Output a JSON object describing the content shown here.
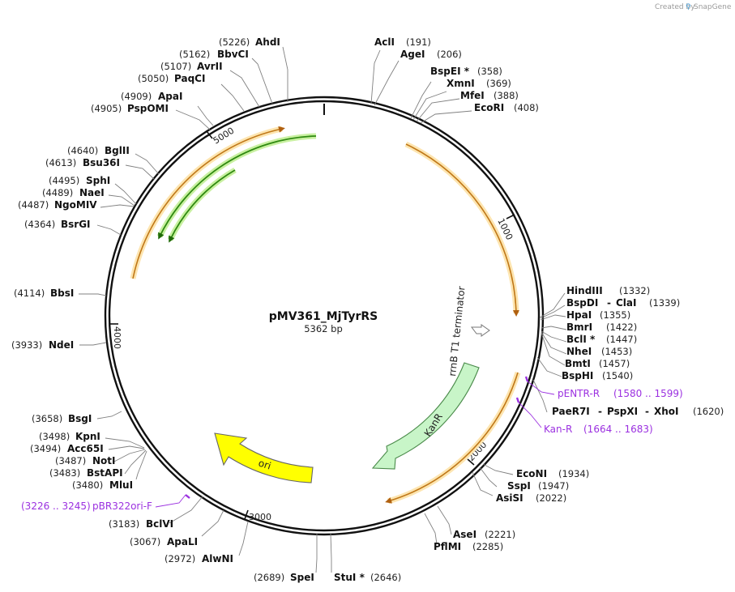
{
  "credit": {
    "created_by": "Created by",
    "brand": "SnapGene"
  },
  "plasmid": {
    "name": "pMV361_MjTyrRS",
    "size_label": "5362 bp"
  },
  "ticks": [
    {
      "id": "t1000",
      "label": "1000"
    },
    {
      "id": "t2000",
      "label": "2000"
    },
    {
      "id": "t3000",
      "label": "3000"
    },
    {
      "id": "t4000",
      "label": "4000"
    },
    {
      "id": "t5000",
      "label": "5000"
    }
  ],
  "sites": [
    {
      "id": "ahdi",
      "name": "AhdI",
      "pos": "(5226)"
    },
    {
      "id": "bbvci",
      "name": "BbvCI",
      "pos": "(5162)"
    },
    {
      "id": "avrii",
      "name": "AvrII",
      "pos": "(5107)"
    },
    {
      "id": "paqci",
      "name": "PaqCI",
      "pos": "(5050)"
    },
    {
      "id": "apai",
      "name": "ApaI",
      "pos": "(4909)"
    },
    {
      "id": "psppomi",
      "name": "PspOMI",
      "pos": "(4905)"
    },
    {
      "id": "bglii",
      "name": "BglII",
      "pos": "(4640)"
    },
    {
      "id": "bsu36i",
      "name": "Bsu36I",
      "pos": "(4613)"
    },
    {
      "id": "sphi",
      "name": "SphI",
      "pos": "(4495)"
    },
    {
      "id": "naei",
      "name": "NaeI",
      "pos": "(4489)"
    },
    {
      "id": "ngomiv",
      "name": "NgoMIV",
      "pos": "(4487)"
    },
    {
      "id": "bsrgi",
      "name": "BsrGI",
      "pos": "(4364)"
    },
    {
      "id": "bbsi",
      "name": "BbsI",
      "pos": "(4114)"
    },
    {
      "id": "ndei",
      "name": "NdeI",
      "pos": "(3933)"
    },
    {
      "id": "bsgi",
      "name": "BsgI",
      "pos": "(3658)"
    },
    {
      "id": "kpni",
      "name": "KpnI",
      "pos": "(3498)"
    },
    {
      "id": "acc65i",
      "name": "Acc65I",
      "pos": "(3494)"
    },
    {
      "id": "noti",
      "name": "NotI",
      "pos": "(3487)"
    },
    {
      "id": "bstapi",
      "name": "BstAPI",
      "pos": "(3483)"
    },
    {
      "id": "mlui",
      "name": "MluI",
      "pos": "(3480)"
    },
    {
      "id": "bclvi",
      "name": "BclVI",
      "pos": "(3183)"
    },
    {
      "id": "apali",
      "name": "ApaLI",
      "pos": "(3067)"
    },
    {
      "id": "alwni",
      "name": "AlwNI",
      "pos": "(2972)"
    },
    {
      "id": "spei",
      "name": "SpeI",
      "pos": "(2689)"
    },
    {
      "id": "stui",
      "name": "StuI *",
      "pos": "(2646)"
    },
    {
      "id": "acli",
      "name": "AclI",
      "pos": "(191)"
    },
    {
      "id": "agei",
      "name": "AgeI",
      "pos": "(206)"
    },
    {
      "id": "bspei",
      "name": "BspEI *",
      "pos": "(358)"
    },
    {
      "id": "xmni",
      "name": "XmnI",
      "pos": "(369)"
    },
    {
      "id": "mfei",
      "name": "MfeI",
      "pos": "(388)"
    },
    {
      "id": "ecori",
      "name": "EcoRI",
      "pos": "(408)"
    },
    {
      "id": "hindiii",
      "name": "HindIII",
      "pos": "(1332)"
    },
    {
      "id": "bspdi",
      "name": "BspDI",
      "sep": "-",
      "name2": "ClaI",
      "pos": "(1339)"
    },
    {
      "id": "hpai",
      "name": "HpaI",
      "pos": "(1355)"
    },
    {
      "id": "bmri",
      "name": "BmrI",
      "pos": "(1422)"
    },
    {
      "id": "bcli",
      "name": "BclI *",
      "pos": "(1447)"
    },
    {
      "id": "nhei",
      "name": "NheI",
      "pos": "(1453)"
    },
    {
      "id": "bmti",
      "name": "BmtI",
      "pos": "(1457)"
    },
    {
      "id": "bsphi",
      "name": "BspHI",
      "pos": "(1540)"
    },
    {
      "id": "paer7i",
      "name": "PaeR7I",
      "sep": "-",
      "name2": "PspXI",
      "sep2": "-",
      "name3": "XhoI",
      "pos": "(1620)"
    },
    {
      "id": "econi",
      "name": "EcoNI",
      "pos": "(1934)"
    },
    {
      "id": "sspi",
      "name": "SspI",
      "pos": "(1947)"
    },
    {
      "id": "asisi",
      "name": "AsiSI",
      "pos": "(2022)"
    },
    {
      "id": "asei",
      "name": "AseI",
      "pos": "(2221)"
    },
    {
      "id": "pflmi",
      "name": "PflMI",
      "pos": "(2285)"
    }
  ],
  "primers": [
    {
      "id": "pentr",
      "name": "pENTR-R",
      "range": "(1580 .. 1599)"
    },
    {
      "id": "kanr",
      "name": "Kan-R",
      "range": "(1664 .. 1683)"
    },
    {
      "id": "pbr322",
      "name": "pBR322ori-F",
      "range": "(3226 .. 3245)"
    }
  ],
  "features": [
    {
      "id": "kanr-feat",
      "label": "KanR",
      "color": "#c8f5c8"
    },
    {
      "id": "ori-feat",
      "label": "ori",
      "color": "#ffff00"
    },
    {
      "id": "rrnb-feat",
      "label": "rrnB T1 terminator",
      "color": "#ffffff"
    }
  ],
  "colors": {
    "orf": "#e8a020",
    "orf_glow": "#fde5b0",
    "green_orf": "#2f8a10",
    "green_glow": "#c8f0a0",
    "primer": "#9b30e0"
  }
}
